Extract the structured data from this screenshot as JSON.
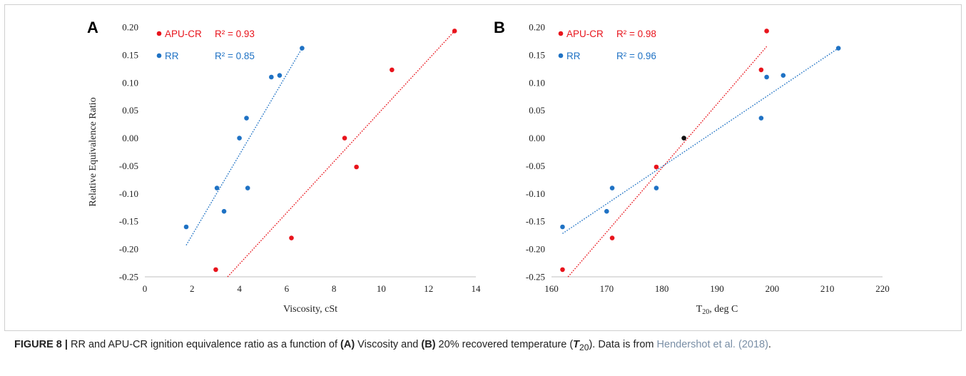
{
  "chart_data": [
    {
      "panel": "A",
      "type": "scatter",
      "xlabel": "Viscosity, cSt",
      "ylabel": "Relative Equivalence Ratio",
      "xlim": [
        0,
        14
      ],
      "ylim": [
        -0.25,
        0.2
      ],
      "xticks": [
        0,
        2,
        4,
        6,
        8,
        10,
        12,
        14
      ],
      "yticks": [
        0.2,
        0.15,
        0.1,
        0.05,
        0.0,
        -0.05,
        -0.1,
        -0.15,
        -0.2,
        -0.25
      ],
      "legend_position": "top-left",
      "series": [
        {
          "name": "APU-CR",
          "r2": "R² = 0.93",
          "color": "#e8141c",
          "points": [
            [
              3.0,
              -0.237
            ],
            [
              6.2,
              -0.18
            ],
            [
              8.45,
              0.0
            ],
            [
              8.95,
              -0.052
            ],
            [
              10.45,
              0.123
            ],
            [
              13.1,
              0.193
            ]
          ],
          "trendline": [
            [
              3.5,
              -0.25
            ],
            [
              13.1,
              0.193
            ]
          ]
        },
        {
          "name": "RR",
          "r2": "R² = 0.85",
          "color": "#1f72c4",
          "points": [
            [
              1.75,
              -0.16
            ],
            [
              3.05,
              -0.09
            ],
            [
              3.35,
              -0.132
            ],
            [
              4.0,
              0.0
            ],
            [
              4.3,
              0.036
            ],
            [
              4.35,
              -0.09
            ],
            [
              5.35,
              0.11
            ],
            [
              5.7,
              0.113
            ],
            [
              6.65,
              0.162
            ]
          ],
          "trendline": [
            [
              1.75,
              -0.193
            ],
            [
              6.65,
              0.162
            ]
          ]
        }
      ]
    },
    {
      "panel": "B",
      "type": "scatter",
      "xlabel": "T20, deg C",
      "xlabel_main": "T",
      "xlabel_sub": "20",
      "xlabel_rest": ", deg C",
      "ylim": [
        -0.25,
        0.2
      ],
      "xlim": [
        160,
        220
      ],
      "xticks": [
        160,
        170,
        180,
        190,
        200,
        210,
        220
      ],
      "yticks": [
        0.2,
        0.15,
        0.1,
        0.05,
        0.0,
        -0.05,
        -0.1,
        -0.15,
        -0.2,
        -0.25
      ],
      "legend_position": "top-left",
      "series": [
        {
          "name": "APU-CR",
          "r2": "R² = 0.98",
          "color": "#e8141c",
          "points": [
            [
              162,
              -0.237
            ],
            [
              171,
              -0.18
            ],
            [
              179,
              -0.052
            ],
            [
              198,
              0.123
            ],
            [
              199,
              0.193
            ]
          ],
          "trendline": [
            [
              163,
              -0.25
            ],
            [
              199,
              0.165
            ]
          ]
        },
        {
          "name": "RR",
          "r2": "R² = 0.96",
          "color": "#1f72c4",
          "points": [
            [
              162,
              -0.16
            ],
            [
              170,
              -0.132
            ],
            [
              171,
              -0.09
            ],
            [
              179,
              -0.09
            ],
            [
              198,
              0.036
            ],
            [
              199,
              0.11
            ],
            [
              202,
              0.113
            ],
            [
              212,
              0.162
            ]
          ],
          "trendline": [
            [
              162,
              -0.172
            ],
            [
              212,
              0.162
            ]
          ]
        },
        {
          "name": "",
          "color": "#111111",
          "points": [
            [
              184,
              0.0
            ]
          ]
        }
      ]
    }
  ],
  "caption": {
    "label": "FIGURE 8 |",
    "t1": " RR and APU-CR ignition equivalence ratio as a function of ",
    "a": "(A)",
    "t2": " Viscosity and ",
    "b": "(B)",
    "t3": " 20% recovered temperature (",
    "sym": "T",
    "sub": "20",
    "t4": "). Data is from ",
    "cite": "Hendershot et al. (2018)",
    "t5": "."
  }
}
